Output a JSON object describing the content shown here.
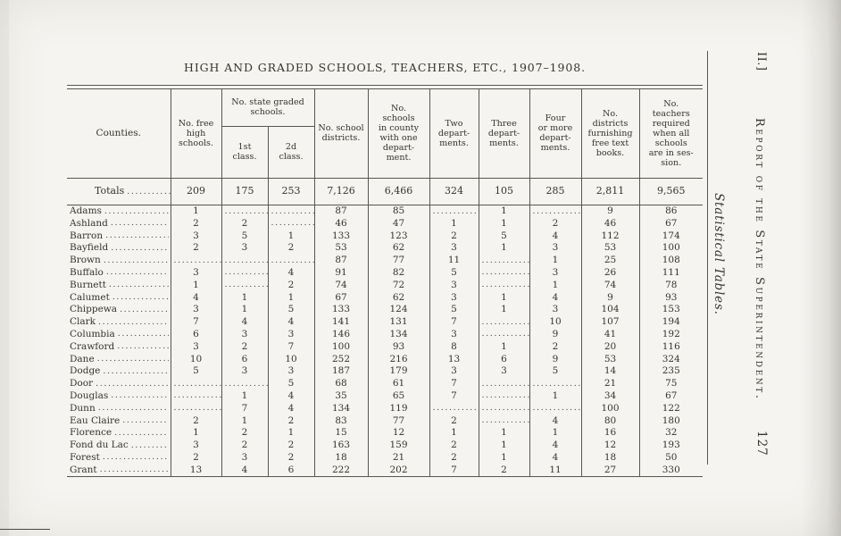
{
  "colors": {
    "paper": "#f5f4f0",
    "ink": "#35342e",
    "rule": "#57564f",
    "dots": "#454440"
  },
  "page": {
    "title": "HIGH AND GRADED SCHOOLS, TEACHERS, ETC., 1907–1908.",
    "margin_top": "II.]",
    "margin_side": "Report of the State Superintendent.",
    "margin_section": "Statistical Tables.",
    "page_number": "127"
  },
  "table": {
    "headers": {
      "counties": "Counties.",
      "free_high": "No. free\nhigh\nschools.",
      "graded_group": "No. state graded\nschools.",
      "first_class": "1st\nclass.",
      "second_class": "2d\nclass.",
      "districts": "No. school\ndistricts.",
      "one_dept": "No.\nschools\nin county\nwith one\ndepart-\nment.",
      "two_dept": "Two\ndepart-\nments.",
      "three_dept": "Three\ndepart-\nments.",
      "four_dept": "Four\nor more\ndepart-\nments.",
      "free_text": "No.\ndistricts\nfurnishing\nfree text\nbooks.",
      "teachers": "No.\nteachers\nrequired\nwhen all\nschools\nare in ses-\nsion."
    },
    "totals": {
      "label": "Totals",
      "values": [
        "209",
        "175",
        "253",
        "7,126",
        "6,466",
        "324",
        "105",
        "285",
        "2,811",
        "9,565"
      ]
    },
    "rows": [
      {
        "county": "Adams",
        "values": [
          "1",
          "",
          "",
          "87",
          "85",
          "",
          "1",
          "",
          "9",
          "86"
        ]
      },
      {
        "county": "Ashland",
        "values": [
          "2",
          "2",
          "",
          "46",
          "47",
          "1",
          "1",
          "2",
          "46",
          "67"
        ]
      },
      {
        "county": "Barron",
        "values": [
          "3",
          "5",
          "1",
          "133",
          "123",
          "2",
          "5",
          "4",
          "112",
          "174"
        ]
      },
      {
        "county": "Bayfield",
        "values": [
          "2",
          "3",
          "2",
          "53",
          "62",
          "3",
          "1",
          "3",
          "53",
          "100"
        ]
      },
      {
        "county": "Brown",
        "values": [
          "",
          "",
          "",
          "87",
          "77",
          "11",
          "",
          "1",
          "25",
          "108"
        ]
      },
      {
        "county": "Buffalo",
        "values": [
          "3",
          "",
          "4",
          "91",
          "82",
          "5",
          "",
          "3",
          "26",
          "111"
        ]
      },
      {
        "county": "Burnett",
        "values": [
          "1",
          "",
          "2",
          "74",
          "72",
          "3",
          "",
          "1",
          "74",
          "78"
        ]
      },
      {
        "county": "Calumet",
        "values": [
          "4",
          "1",
          "1",
          "67",
          "62",
          "3",
          "1",
          "4",
          "9",
          "93"
        ]
      },
      {
        "county": "Chippewa",
        "values": [
          "3",
          "1",
          "5",
          "133",
          "124",
          "5",
          "1",
          "3",
          "104",
          "153"
        ]
      },
      {
        "county": "Clark",
        "values": [
          "7",
          "4",
          "4",
          "141",
          "131",
          "7",
          "",
          "10",
          "107",
          "194"
        ]
      },
      {
        "county": "Columbia",
        "values": [
          "6",
          "3",
          "3",
          "146",
          "134",
          "3",
          "",
          "9",
          "41",
          "192"
        ]
      },
      {
        "county": "Crawford",
        "values": [
          "3",
          "2",
          "7",
          "100",
          "93",
          "8",
          "1",
          "2",
          "20",
          "116"
        ]
      },
      {
        "county": "Dane",
        "values": [
          "10",
          "6",
          "10",
          "252",
          "216",
          "13",
          "6",
          "9",
          "53",
          "324"
        ]
      },
      {
        "county": "Dodge",
        "values": [
          "5",
          "3",
          "3",
          "187",
          "179",
          "3",
          "3",
          "5",
          "14",
          "235"
        ]
      },
      {
        "county": "Door",
        "values": [
          "",
          "",
          "5",
          "68",
          "61",
          "7",
          "",
          "",
          "21",
          "75"
        ]
      },
      {
        "county": "Douglas",
        "values": [
          "",
          "1",
          "4",
          "35",
          "65",
          "7",
          "",
          "1",
          "34",
          "67"
        ]
      },
      {
        "county": "Dunn",
        "values": [
          "",
          "7",
          "4",
          "134",
          "119",
          "",
          "",
          "",
          "100",
          "122"
        ]
      },
      {
        "county": "Eau Claire",
        "values": [
          "2",
          "1",
          "2",
          "83",
          "77",
          "2",
          "",
          "4",
          "80",
          "180"
        ]
      },
      {
        "county": "Florence",
        "values": [
          "1",
          "2",
          "1",
          "15",
          "12",
          "1",
          "1",
          "1",
          "16",
          "32"
        ]
      },
      {
        "county": "Fond du Lac",
        "values": [
          "3",
          "2",
          "2",
          "163",
          "159",
          "2",
          "1",
          "4",
          "12",
          "193"
        ]
      },
      {
        "county": "Forest",
        "values": [
          "2",
          "3",
          "2",
          "18",
          "21",
          "2",
          "1",
          "4",
          "18",
          "50"
        ]
      },
      {
        "county": "Grant",
        "values": [
          "13",
          "4",
          "6",
          "222",
          "202",
          "7",
          "2",
          "11",
          "27",
          "330"
        ]
      }
    ]
  }
}
